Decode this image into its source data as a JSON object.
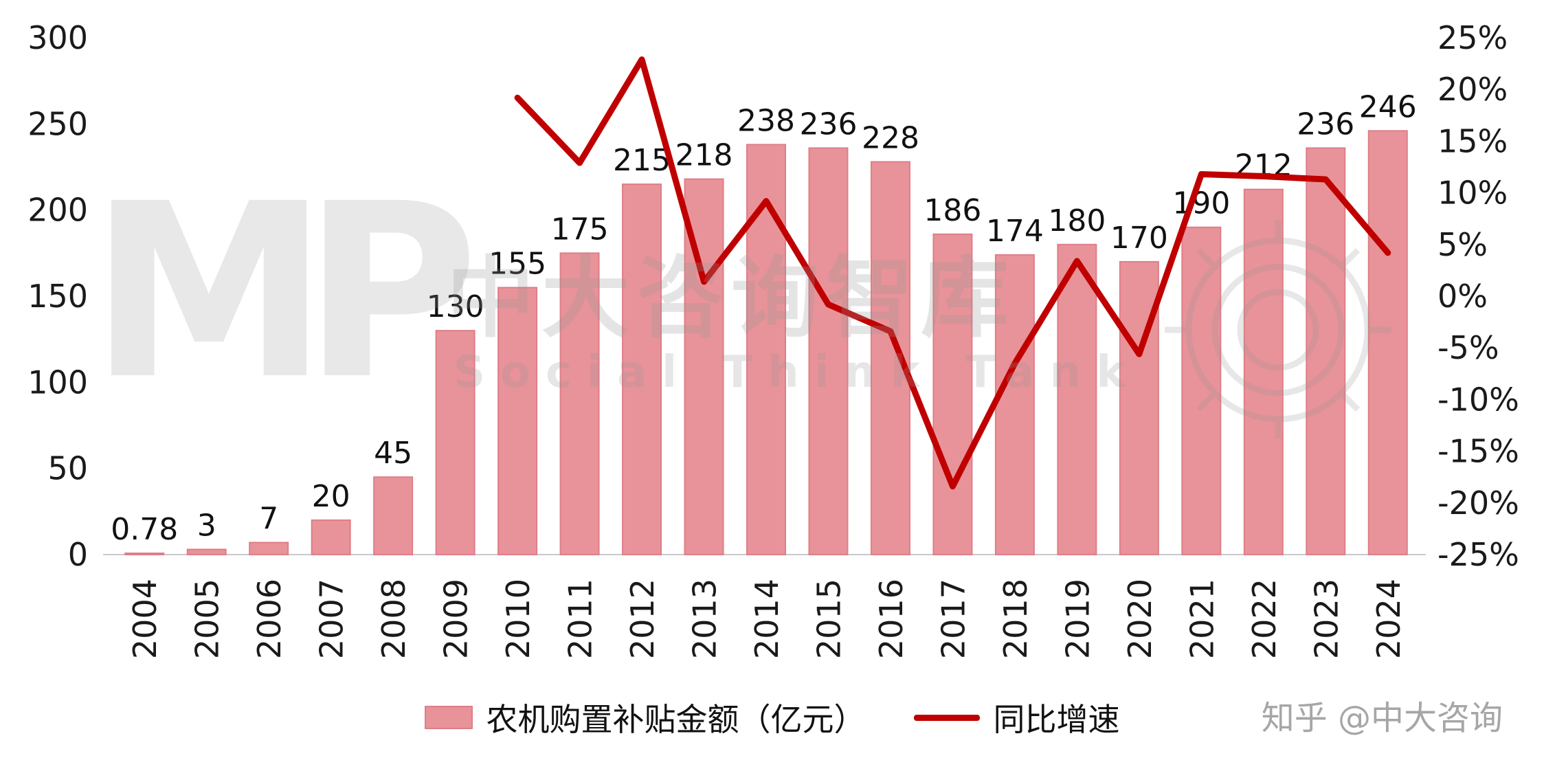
{
  "chart_data": {
    "type": "bar",
    "title": "",
    "categories": [
      "2004",
      "2005",
      "2006",
      "2007",
      "2008",
      "2009",
      "2010",
      "2011",
      "2012",
      "2013",
      "2014",
      "2015",
      "2016",
      "2017",
      "2018",
      "2019",
      "2020",
      "2021",
      "2022",
      "2023",
      "2024"
    ],
    "series": [
      {
        "name": "农机购置补贴金额（亿元）",
        "type": "bar",
        "axis": "left",
        "values": [
          0.78,
          3,
          7,
          20,
          45,
          130,
          155,
          175,
          215,
          218,
          238,
          236,
          228,
          186,
          174,
          180,
          170,
          190,
          212,
          236,
          246
        ],
        "labels": [
          "0.78",
          "3",
          "7",
          "20",
          "45",
          "130",
          "155",
          "175",
          "215",
          "218",
          "238",
          "236",
          "228",
          "186",
          "174",
          "180",
          "170",
          "190",
          "212",
          "236",
          "246"
        ],
        "color": "#E89399",
        "border_color": "#DE7E88"
      },
      {
        "name": "同比增速",
        "type": "line",
        "axis": "right",
        "start_category": "2010",
        "values": [
          19.2,
          12.9,
          22.9,
          1.4,
          9.2,
          -0.8,
          -3.4,
          -18.4,
          -6.5,
          3.4,
          -5.6,
          11.8,
          11.6,
          11.3,
          4.2
        ],
        "color": "#C00000"
      }
    ],
    "left_axis": {
      "min": 0,
      "max": 300,
      "step": 50,
      "tick_labels": [
        "0",
        "50",
        "100",
        "150",
        "200",
        "250",
        "300"
      ]
    },
    "right_axis": {
      "min": -25,
      "max": 25,
      "step": 5,
      "values": [
        25,
        20,
        15,
        10,
        5,
        0,
        -5,
        -10,
        -15,
        -20,
        -25
      ],
      "tick_labels": [
        "25%",
        "20%",
        "15%",
        "10%",
        "5%",
        "0%",
        "-5%",
        "-10%",
        "-15%",
        "-20%",
        "-25%"
      ]
    },
    "grid": false,
    "legend_position": "bottom"
  },
  "legend": {
    "bar_label": "农机购置补贴金额（亿元）",
    "line_label": "同比增速"
  },
  "watermark": {
    "logo_text": "MP",
    "cn_text": "中大咨询智库",
    "en_text": "Social Think Tank"
  },
  "credit": "知乎 @中大咨询",
  "colors": {
    "bar_fill": "#E89399",
    "bar_border": "#DE7E88",
    "line": "#C00000",
    "text": "#111111",
    "credit": "#A6A6A6"
  }
}
